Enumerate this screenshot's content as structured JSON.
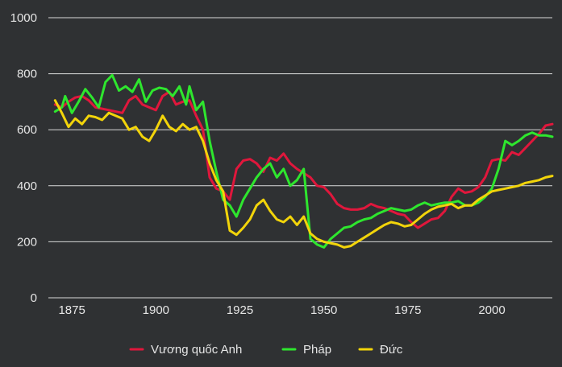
{
  "chart_data": {
    "type": "line",
    "title": "",
    "xlabel": "",
    "ylabel": "",
    "xlim": [
      1868,
      2018
    ],
    "ylim": [
      0,
      1000
    ],
    "x_ticks": [
      1875,
      1900,
      1925,
      1950,
      1975,
      2000
    ],
    "x_tick_labels": [
      "1875",
      "1900",
      "1925",
      "1950",
      "1975",
      "2000"
    ],
    "y_ticks": [
      0,
      200,
      400,
      600,
      800,
      1000
    ],
    "y_tick_labels": [
      "0",
      "200",
      "400",
      "600",
      "800",
      "1000"
    ],
    "grid": "horizontal",
    "legend_position": "bottom",
    "series": [
      {
        "name": "Vương quốc Anh",
        "color": "#e0173c",
        "points": [
          [
            1870,
            690
          ],
          [
            1872,
            680
          ],
          [
            1874,
            700
          ],
          [
            1876,
            715
          ],
          [
            1878,
            720
          ],
          [
            1880,
            705
          ],
          [
            1882,
            680
          ],
          [
            1884,
            675
          ],
          [
            1886,
            670
          ],
          [
            1888,
            665
          ],
          [
            1890,
            660
          ],
          [
            1892,
            705
          ],
          [
            1894,
            720
          ],
          [
            1896,
            690
          ],
          [
            1898,
            680
          ],
          [
            1900,
            670
          ],
          [
            1902,
            720
          ],
          [
            1904,
            735
          ],
          [
            1906,
            690
          ],
          [
            1908,
            700
          ],
          [
            1910,
            705
          ],
          [
            1912,
            650
          ],
          [
            1914,
            600
          ],
          [
            1916,
            430
          ],
          [
            1918,
            390
          ],
          [
            1920,
            380
          ],
          [
            1922,
            350
          ],
          [
            1924,
            460
          ],
          [
            1926,
            490
          ],
          [
            1928,
            495
          ],
          [
            1930,
            480
          ],
          [
            1932,
            450
          ],
          [
            1934,
            500
          ],
          [
            1936,
            490
          ],
          [
            1938,
            515
          ],
          [
            1940,
            480
          ],
          [
            1942,
            460
          ],
          [
            1944,
            445
          ],
          [
            1946,
            430
          ],
          [
            1948,
            400
          ],
          [
            1950,
            395
          ],
          [
            1952,
            370
          ],
          [
            1954,
            335
          ],
          [
            1956,
            320
          ],
          [
            1958,
            315
          ],
          [
            1960,
            315
          ],
          [
            1962,
            320
          ],
          [
            1964,
            335
          ],
          [
            1966,
            325
          ],
          [
            1968,
            320
          ],
          [
            1970,
            310
          ],
          [
            1972,
            300
          ],
          [
            1974,
            295
          ],
          [
            1976,
            270
          ],
          [
            1978,
            250
          ],
          [
            1980,
            265
          ],
          [
            1982,
            280
          ],
          [
            1984,
            285
          ],
          [
            1986,
            310
          ],
          [
            1988,
            360
          ],
          [
            1990,
            390
          ],
          [
            1992,
            375
          ],
          [
            1994,
            380
          ],
          [
            1996,
            395
          ],
          [
            1998,
            430
          ],
          [
            2000,
            490
          ],
          [
            2002,
            495
          ],
          [
            2004,
            490
          ],
          [
            2006,
            520
          ],
          [
            2008,
            510
          ],
          [
            2010,
            535
          ],
          [
            2012,
            560
          ],
          [
            2014,
            585
          ],
          [
            2016,
            615
          ],
          [
            2018,
            620
          ]
        ]
      },
      {
        "name": "Pháp",
        "color": "#2ee62e",
        "points": [
          [
            1870,
            665
          ],
          [
            1872,
            680
          ],
          [
            1873,
            720
          ],
          [
            1875,
            660
          ],
          [
            1877,
            700
          ],
          [
            1879,
            745
          ],
          [
            1881,
            715
          ],
          [
            1883,
            680
          ],
          [
            1885,
            770
          ],
          [
            1887,
            795
          ],
          [
            1889,
            740
          ],
          [
            1891,
            755
          ],
          [
            1893,
            735
          ],
          [
            1895,
            780
          ],
          [
            1897,
            700
          ],
          [
            1899,
            740
          ],
          [
            1901,
            750
          ],
          [
            1903,
            745
          ],
          [
            1905,
            720
          ],
          [
            1907,
            755
          ],
          [
            1909,
            690
          ],
          [
            1910,
            755
          ],
          [
            1912,
            670
          ],
          [
            1914,
            700
          ],
          [
            1916,
            560
          ],
          [
            1918,
            450
          ],
          [
            1920,
            350
          ],
          [
            1922,
            330
          ],
          [
            1924,
            290
          ],
          [
            1926,
            350
          ],
          [
            1928,
            390
          ],
          [
            1930,
            430
          ],
          [
            1932,
            460
          ],
          [
            1934,
            480
          ],
          [
            1936,
            430
          ],
          [
            1938,
            460
          ],
          [
            1940,
            400
          ],
          [
            1942,
            420
          ],
          [
            1944,
            460
          ],
          [
            1946,
            210
          ],
          [
            1948,
            190
          ],
          [
            1950,
            180
          ],
          [
            1952,
            210
          ],
          [
            1954,
            230
          ],
          [
            1956,
            250
          ],
          [
            1958,
            255
          ],
          [
            1960,
            270
          ],
          [
            1962,
            280
          ],
          [
            1964,
            285
          ],
          [
            1966,
            300
          ],
          [
            1968,
            310
          ],
          [
            1970,
            320
          ],
          [
            1972,
            315
          ],
          [
            1974,
            310
          ],
          [
            1976,
            315
          ],
          [
            1978,
            330
          ],
          [
            1980,
            340
          ],
          [
            1982,
            330
          ],
          [
            1984,
            335
          ],
          [
            1986,
            340
          ],
          [
            1988,
            340
          ],
          [
            1990,
            345
          ],
          [
            1992,
            330
          ],
          [
            1994,
            330
          ],
          [
            1996,
            340
          ],
          [
            1998,
            360
          ],
          [
            2000,
            390
          ],
          [
            2002,
            460
          ],
          [
            2004,
            560
          ],
          [
            2006,
            545
          ],
          [
            2008,
            560
          ],
          [
            2010,
            580
          ],
          [
            2012,
            590
          ],
          [
            2014,
            580
          ],
          [
            2016,
            580
          ],
          [
            2018,
            575
          ]
        ]
      },
      {
        "name": "Đức",
        "color": "#f2d40a",
        "points": [
          [
            1870,
            705
          ],
          [
            1872,
            660
          ],
          [
            1874,
            610
          ],
          [
            1876,
            640
          ],
          [
            1878,
            620
          ],
          [
            1880,
            650
          ],
          [
            1882,
            645
          ],
          [
            1884,
            635
          ],
          [
            1886,
            660
          ],
          [
            1888,
            650
          ],
          [
            1890,
            640
          ],
          [
            1892,
            600
          ],
          [
            1894,
            610
          ],
          [
            1896,
            575
          ],
          [
            1898,
            560
          ],
          [
            1900,
            600
          ],
          [
            1902,
            650
          ],
          [
            1904,
            610
          ],
          [
            1906,
            595
          ],
          [
            1908,
            620
          ],
          [
            1910,
            600
          ],
          [
            1912,
            610
          ],
          [
            1914,
            560
          ],
          [
            1916,
            480
          ],
          [
            1918,
            420
          ],
          [
            1920,
            380
          ],
          [
            1922,
            240
          ],
          [
            1924,
            225
          ],
          [
            1926,
            250
          ],
          [
            1928,
            280
          ],
          [
            1930,
            330
          ],
          [
            1932,
            350
          ],
          [
            1934,
            310
          ],
          [
            1936,
            280
          ],
          [
            1938,
            270
          ],
          [
            1940,
            290
          ],
          [
            1942,
            260
          ],
          [
            1944,
            290
          ],
          [
            1946,
            230
          ],
          [
            1948,
            210
          ],
          [
            1950,
            200
          ],
          [
            1952,
            195
          ],
          [
            1954,
            190
          ],
          [
            1956,
            180
          ],
          [
            1958,
            185
          ],
          [
            1960,
            200
          ],
          [
            1962,
            215
          ],
          [
            1964,
            230
          ],
          [
            1966,
            245
          ],
          [
            1968,
            260
          ],
          [
            1970,
            270
          ],
          [
            1972,
            265
          ],
          [
            1974,
            255
          ],
          [
            1976,
            260
          ],
          [
            1978,
            280
          ],
          [
            1980,
            300
          ],
          [
            1982,
            315
          ],
          [
            1984,
            325
          ],
          [
            1986,
            330
          ],
          [
            1988,
            335
          ],
          [
            1990,
            320
          ],
          [
            1992,
            330
          ],
          [
            1994,
            330
          ],
          [
            1996,
            350
          ],
          [
            1998,
            365
          ],
          [
            2000,
            380
          ],
          [
            2002,
            385
          ],
          [
            2004,
            390
          ],
          [
            2006,
            395
          ],
          [
            2008,
            400
          ],
          [
            2010,
            410
          ],
          [
            2012,
            415
          ],
          [
            2014,
            420
          ],
          [
            2016,
            430
          ],
          [
            2018,
            435
          ]
        ]
      }
    ]
  }
}
